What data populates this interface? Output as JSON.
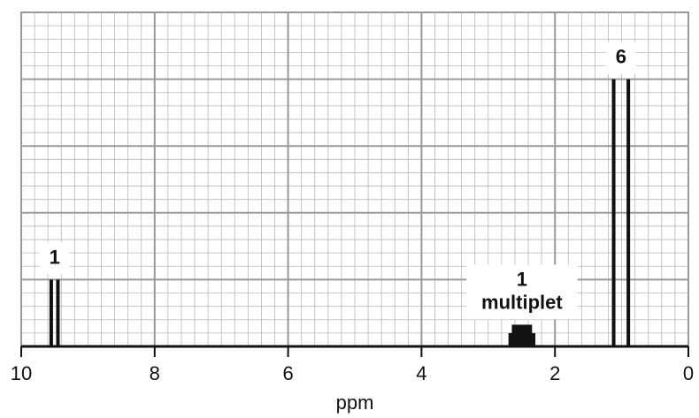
{
  "chart_data": {
    "type": "bar",
    "title": "",
    "xlabel": "ppm",
    "ylabel": "",
    "xlim": [
      10,
      0
    ],
    "x_ticks": [
      "10",
      "8",
      "6",
      "4",
      "2",
      "0"
    ],
    "grid": true,
    "peaks": [
      {
        "label_lines": [
          "1"
        ],
        "lines": [
          {
            "ppm": 9.55,
            "height": 0.2
          },
          {
            "ppm": 9.45,
            "height": 0.2
          }
        ]
      },
      {
        "label_lines": [
          "1",
          "multiplet"
        ],
        "lines": [
          {
            "ppm": 2.67,
            "height": 0.04
          },
          {
            "ppm": 2.62,
            "height": 0.065
          },
          {
            "ppm": 2.57,
            "height": 0.065
          },
          {
            "ppm": 2.52,
            "height": 0.065
          },
          {
            "ppm": 2.47,
            "height": 0.065
          },
          {
            "ppm": 2.42,
            "height": 0.065
          },
          {
            "ppm": 2.37,
            "height": 0.065
          },
          {
            "ppm": 2.32,
            "height": 0.04
          }
        ]
      },
      {
        "label_lines": [
          "6"
        ],
        "lines": [
          {
            "ppm": 1.12,
            "height": 0.8
          },
          {
            "ppm": 0.9,
            "height": 0.8
          }
        ]
      }
    ]
  },
  "colors": {
    "major_grid": "#9a9a9a",
    "minor_grid": "#b7b7b7",
    "frame": "#999999",
    "axis": "#111111",
    "peak": "#111111",
    "label_box": "#ffffff"
  }
}
